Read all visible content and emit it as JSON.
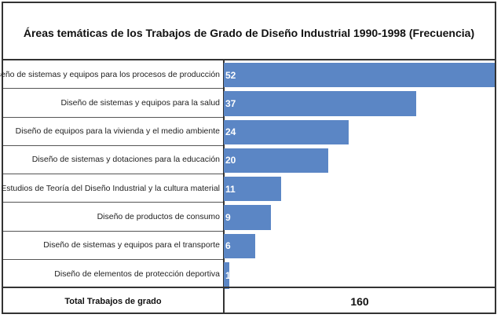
{
  "chart_data": {
    "type": "bar",
    "orientation": "horizontal",
    "title": "Áreas temáticas de los Trabajos de Grado de Diseño Industrial  1990-1998 (Frecuencia)",
    "categories": [
      "Diseño de sistemas y equipos para los procesos de producción",
      "Diseño de sistemas y equipos para la salud",
      "Diseño de equipos para la vivienda y el medio ambiente",
      "Diseño de sistemas y dotaciones para la educación",
      "Estudios de Teoría del Diseño Industrial y la cultura material",
      "Diseño de productos de consumo",
      "Diseño de sistemas y equipos para el transporte",
      "Diseño de elementos de protección deportiva"
    ],
    "values": [
      52,
      37,
      24,
      20,
      11,
      9,
      6,
      1
    ],
    "xlim": [
      0,
      52
    ],
    "grid": false,
    "bar_color": "#5b86c5"
  },
  "total": {
    "label": "Total Trabajos de grado",
    "value": "160"
  }
}
